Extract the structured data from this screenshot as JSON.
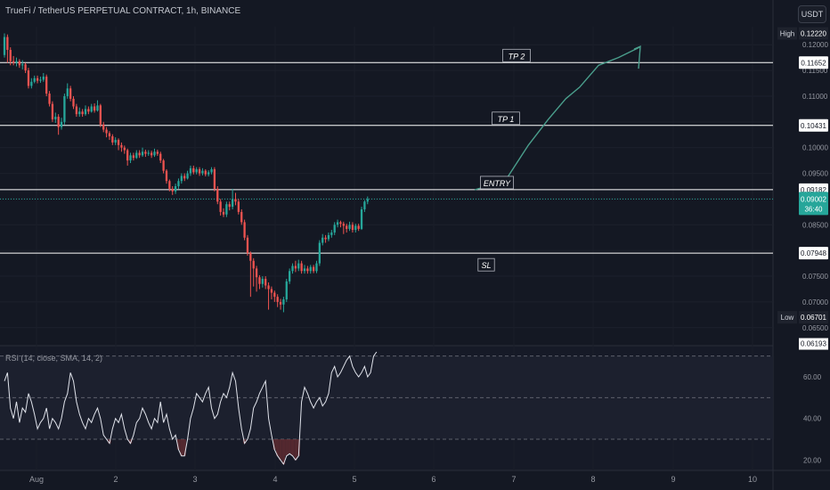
{
  "header": {
    "title": "TrueFi / TetherUS PERPETUAL CONTRACT, 1h, BINANCE",
    "currency": "USDT"
  },
  "chart_data": {
    "type": "candlestick",
    "colors": {
      "up": "#26a69a",
      "down": "#ef5350",
      "line": "#ffffff",
      "rsi": "#e0e3eb",
      "arrow": "#4a9e8c"
    },
    "price_axis": {
      "ticks": [
        "0.12000",
        "0.11500",
        "0.11000",
        "0.10500",
        "0.10000",
        "0.09500",
        "0.09000",
        "0.08500",
        "0.08000",
        "0.07500",
        "0.07000",
        "0.06500"
      ],
      "range": [
        0.0615,
        0.1235
      ]
    },
    "x_axis": {
      "labels": [
        "Aug",
        "2",
        "3",
        "4",
        "5",
        "6",
        "7",
        "8",
        "9",
        "10"
      ]
    },
    "levels": [
      {
        "name": "TP 2",
        "price": 0.11652,
        "label": "0.11652"
      },
      {
        "name": "TP 1",
        "price": 0.10431,
        "label": "0.10431"
      },
      {
        "name": "ENTRY",
        "price": 0.09182,
        "label": "0.09182"
      },
      {
        "name": "SL",
        "price": 0.07948,
        "label": "0.07948"
      }
    ],
    "current": {
      "price": 0.09002,
      "label": "0.09002",
      "countdown": "36:40"
    },
    "high": {
      "tag": "High",
      "label": "0.12220",
      "price": 0.1222
    },
    "low": {
      "tag": "Low",
      "label": "0.06701",
      "price": 0.06701
    },
    "bottom_label": {
      "label": "0.06193",
      "price": 0.06193
    },
    "candles": [
      [
        0.118,
        0.1215,
        0.1222,
        0.1175
      ],
      [
        0.1215,
        0.119,
        0.122,
        0.1165
      ],
      [
        0.119,
        0.1168,
        0.1195,
        0.116
      ],
      [
        0.1168,
        0.1165,
        0.1178,
        0.116
      ],
      [
        0.1165,
        0.1168,
        0.1175,
        0.1158
      ],
      [
        0.1168,
        0.116,
        0.1172,
        0.1155
      ],
      [
        0.116,
        0.1162,
        0.117,
        0.1152
      ],
      [
        0.1162,
        0.115,
        0.1165,
        0.1145
      ],
      [
        0.115,
        0.112,
        0.1155,
        0.1115
      ],
      [
        0.112,
        0.1128,
        0.1135,
        0.1115
      ],
      [
        0.1128,
        0.1135,
        0.114,
        0.1125
      ],
      [
        0.1135,
        0.113,
        0.114,
        0.1125
      ],
      [
        0.113,
        0.1132,
        0.1138,
        0.1126
      ],
      [
        0.1132,
        0.1138,
        0.1145,
        0.1128
      ],
      [
        0.1138,
        0.1105,
        0.1142,
        0.11
      ],
      [
        0.1105,
        0.1085,
        0.111,
        0.108
      ],
      [
        0.1085,
        0.1055,
        0.109,
        0.105
      ],
      [
        0.1055,
        0.106,
        0.1068,
        0.1048
      ],
      [
        0.106,
        0.104,
        0.1065,
        0.1025
      ],
      [
        0.104,
        0.105,
        0.1058,
        0.1035
      ],
      [
        0.105,
        0.11,
        0.1105,
        0.1045
      ],
      [
        0.11,
        0.1115,
        0.1125,
        0.1095
      ],
      [
        0.1115,
        0.1095,
        0.112,
        0.109
      ],
      [
        0.1095,
        0.108,
        0.11,
        0.1075
      ],
      [
        0.108,
        0.1065,
        0.1085,
        0.106
      ],
      [
        0.1065,
        0.107,
        0.1078,
        0.106
      ],
      [
        0.107,
        0.1065,
        0.1075,
        0.106
      ],
      [
        0.1065,
        0.1075,
        0.1082,
        0.1062
      ],
      [
        0.1075,
        0.107,
        0.108,
        0.1065
      ],
      [
        0.107,
        0.108,
        0.1085,
        0.1068
      ],
      [
        0.108,
        0.1072,
        0.1086,
        0.1068
      ],
      [
        0.1072,
        0.1082,
        0.1092,
        0.107
      ],
      [
        0.1082,
        0.1045,
        0.1085,
        0.104
      ],
      [
        0.1045,
        0.1035,
        0.105,
        0.103
      ],
      [
        0.1035,
        0.1028,
        0.104,
        0.102
      ],
      [
        0.1028,
        0.1022,
        0.1032,
        0.1015
      ],
      [
        0.1022,
        0.101,
        0.1026,
        0.1005
      ],
      [
        0.101,
        0.1015,
        0.102,
        0.1005
      ],
      [
        0.1015,
        0.1005,
        0.1018,
        0.0995
      ],
      [
        0.1005,
        0.1,
        0.101,
        0.0992
      ],
      [
        0.1,
        0.0995,
        0.1004,
        0.0988
      ],
      [
        0.0995,
        0.0975,
        0.0998,
        0.0965
      ],
      [
        0.0975,
        0.0985,
        0.099,
        0.097
      ],
      [
        0.0985,
        0.098,
        0.099,
        0.0975
      ],
      [
        0.098,
        0.099,
        0.0995,
        0.0978
      ],
      [
        0.099,
        0.0985,
        0.0995,
        0.098
      ],
      [
        0.0985,
        0.0992,
        0.1,
        0.0982
      ],
      [
        0.0992,
        0.0988,
        0.0996,
        0.0982
      ],
      [
        0.0988,
        0.099,
        0.0995,
        0.0984
      ],
      [
        0.099,
        0.0985,
        0.0994,
        0.098
      ],
      [
        0.0985,
        0.0992,
        0.0998,
        0.0982
      ],
      [
        0.0992,
        0.0988,
        0.0996,
        0.0984
      ],
      [
        0.0988,
        0.0975,
        0.0992,
        0.097
      ],
      [
        0.0975,
        0.0955,
        0.0978,
        0.095
      ],
      [
        0.0955,
        0.0935,
        0.0958,
        0.093
      ],
      [
        0.0935,
        0.092,
        0.0938,
        0.0915
      ],
      [
        0.092,
        0.0915,
        0.0925,
        0.0908
      ],
      [
        0.0915,
        0.0925,
        0.093,
        0.091
      ],
      [
        0.0925,
        0.0935,
        0.094,
        0.092
      ],
      [
        0.0935,
        0.0945,
        0.095,
        0.093
      ],
      [
        0.0945,
        0.094,
        0.095,
        0.0935
      ],
      [
        0.094,
        0.095,
        0.0955,
        0.0938
      ],
      [
        0.095,
        0.096,
        0.0965,
        0.0945
      ],
      [
        0.096,
        0.0952,
        0.0965,
        0.0948
      ],
      [
        0.0952,
        0.0958,
        0.0962,
        0.0948
      ],
      [
        0.0958,
        0.095,
        0.0962,
        0.0945
      ],
      [
        0.095,
        0.0955,
        0.096,
        0.0946
      ],
      [
        0.0955,
        0.0948,
        0.0958,
        0.0944
      ],
      [
        0.0948,
        0.0952,
        0.0956,
        0.0944
      ],
      [
        0.0952,
        0.0958,
        0.0962,
        0.0948
      ],
      [
        0.0958,
        0.092,
        0.0962,
        0.0915
      ],
      [
        0.092,
        0.0895,
        0.0925,
        0.089
      ],
      [
        0.0895,
        0.0875,
        0.09,
        0.0868
      ],
      [
        0.0875,
        0.087,
        0.0882,
        0.0865
      ],
      [
        0.087,
        0.089,
        0.0895,
        0.0865
      ],
      [
        0.089,
        0.0885,
        0.0895,
        0.0878
      ],
      [
        0.0885,
        0.09,
        0.092,
        0.088
      ],
      [
        0.09,
        0.0895,
        0.0912,
        0.0888
      ],
      [
        0.0895,
        0.0875,
        0.09,
        0.087
      ],
      [
        0.0875,
        0.0855,
        0.088,
        0.085
      ],
      [
        0.0855,
        0.0825,
        0.086,
        0.082
      ],
      [
        0.0825,
        0.0795,
        0.083,
        0.079
      ],
      [
        0.0795,
        0.078,
        0.0798,
        0.071
      ],
      [
        0.078,
        0.0765,
        0.0785,
        0.073
      ],
      [
        0.0765,
        0.0748,
        0.077,
        0.072
      ],
      [
        0.0748,
        0.0735,
        0.0752,
        0.0725
      ],
      [
        0.0735,
        0.0745,
        0.075,
        0.0728
      ],
      [
        0.0745,
        0.0732,
        0.075,
        0.0725
      ],
      [
        0.0732,
        0.0725,
        0.0738,
        0.0685
      ],
      [
        0.0725,
        0.0718,
        0.073,
        0.0705
      ],
      [
        0.0718,
        0.071,
        0.0722,
        0.07
      ],
      [
        0.071,
        0.07,
        0.0715,
        0.069
      ],
      [
        0.07,
        0.0695,
        0.0706,
        0.0685
      ],
      [
        0.0695,
        0.0705,
        0.071,
        0.068
      ],
      [
        0.0705,
        0.074,
        0.0745,
        0.07
      ],
      [
        0.074,
        0.076,
        0.0765,
        0.0735
      ],
      [
        0.076,
        0.077,
        0.0775,
        0.0755
      ],
      [
        0.077,
        0.0765,
        0.078,
        0.0758
      ],
      [
        0.0765,
        0.0775,
        0.0782,
        0.076
      ],
      [
        0.0775,
        0.076,
        0.078,
        0.0755
      ],
      [
        0.076,
        0.0765,
        0.0772,
        0.0755
      ],
      [
        0.0765,
        0.076,
        0.077,
        0.0755
      ],
      [
        0.076,
        0.0768,
        0.0772,
        0.0755
      ],
      [
        0.0768,
        0.076,
        0.0772,
        0.0756
      ],
      [
        0.076,
        0.0775,
        0.078,
        0.0756
      ],
      [
        0.0775,
        0.0815,
        0.082,
        0.077
      ],
      [
        0.0815,
        0.0825,
        0.0832,
        0.081
      ],
      [
        0.0825,
        0.0822,
        0.083,
        0.0815
      ],
      [
        0.0822,
        0.083,
        0.0835,
        0.0818
      ],
      [
        0.083,
        0.0835,
        0.084,
        0.0825
      ],
      [
        0.0835,
        0.085,
        0.0855,
        0.083
      ],
      [
        0.085,
        0.0855,
        0.086,
        0.0845
      ],
      [
        0.0855,
        0.0852,
        0.0858,
        0.0845
      ],
      [
        0.0852,
        0.0848,
        0.0856,
        0.0832
      ],
      [
        0.0848,
        0.0842,
        0.0852,
        0.0835
      ],
      [
        0.0842,
        0.085,
        0.0856,
        0.0838
      ],
      [
        0.085,
        0.084,
        0.0855,
        0.0835
      ],
      [
        0.084,
        0.0848,
        0.0852,
        0.0835
      ],
      [
        0.0848,
        0.0842,
        0.0852,
        0.0838
      ],
      [
        0.0842,
        0.088,
        0.0885,
        0.084
      ],
      [
        0.088,
        0.0895,
        0.0898,
        0.0875
      ],
      [
        0.0895,
        0.09,
        0.0905,
        0.089
      ]
    ],
    "rsi": {
      "label": "RSI (14, close, SMA, 14, 2)",
      "ticks": [
        "60.00",
        "40.00",
        "20.00"
      ],
      "range": [
        15,
        75
      ],
      "levels": [
        70,
        50,
        30
      ],
      "values": [
        58,
        62,
        45,
        40,
        48,
        38,
        45,
        43,
        52,
        48,
        42,
        35,
        38,
        40,
        45,
        35,
        40,
        38,
        35,
        40,
        48,
        52,
        62,
        58,
        48,
        42,
        38,
        35,
        40,
        38,
        42,
        45,
        40,
        32,
        30,
        28,
        35,
        40,
        38,
        42,
        35,
        30,
        28,
        32,
        38,
        40,
        45,
        42,
        38,
        35,
        40,
        38,
        48,
        38,
        42,
        35,
        30,
        32,
        25,
        22,
        22,
        30,
        40,
        45,
        52,
        50,
        48,
        52,
        55,
        45,
        40,
        42,
        48,
        52,
        50,
        55,
        62,
        58,
        45,
        35,
        28,
        30,
        35,
        45,
        48,
        52,
        55,
        58,
        40,
        32,
        25,
        22,
        20,
        18,
        22,
        23,
        22,
        20,
        22,
        48,
        55,
        52,
        48,
        45,
        48,
        50,
        46,
        48,
        52,
        62,
        65,
        60,
        62,
        65,
        68,
        70,
        65,
        62,
        60,
        62,
        65,
        60,
        62,
        70,
        72
      ]
    },
    "arrow_path": [
      [
        0.192,
        0.0918
      ],
      [
        0.218,
        0.0935
      ],
      [
        0.238,
        0.1005
      ],
      [
        0.255,
        0.1055
      ],
      [
        0.27,
        0.1095
      ],
      [
        0.282,
        0.1118
      ],
      [
        0.298,
        0.116
      ],
      [
        0.315,
        0.1175
      ],
      [
        0.333,
        0.1195
      ]
    ],
    "annotations": [
      "TP 2",
      "TP 1",
      "ENTRY",
      "SL"
    ]
  }
}
